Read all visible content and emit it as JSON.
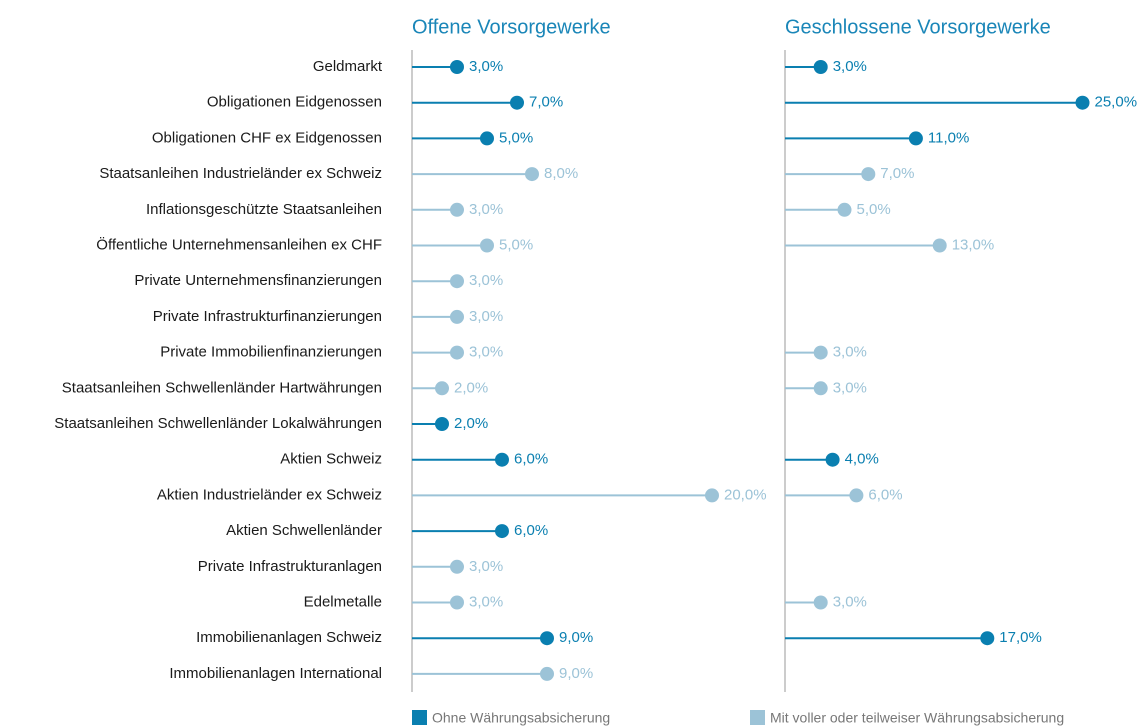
{
  "chart_data": {
    "type": "lollipop",
    "categories": [
      "Geldmarkt",
      "Obligationen Eidgenossen",
      "Obligationen CHF ex Eidgenossen",
      "Staatsanleihen Industrieländer ex Schweiz",
      "Inflationsgeschützte Staatsanleihen",
      "Öffentliche Unternehmensanleihen ex CHF",
      "Private Unternehmensfinanzierungen",
      "Private Infrastrukturfinanzierungen",
      "Private Immobilienfinanzierungen",
      "Staatsanleihen Schwellenländer Hartwährungen",
      "Staatsanleihen Schwellenländer Lokalwährungen",
      "Aktien Schweiz",
      "Aktien Industrieländer ex Schweiz",
      "Aktien Schwellenländer",
      "Private Infrastrukturanlagen",
      "Edelmetalle",
      "Immobilienanlagen Schweiz",
      "Immobilienanlagen International"
    ],
    "legend": [
      {
        "name": "Ohne Währungsabsicherung",
        "color": "#0a7fb0"
      },
      {
        "name": "Mit voller oder teilweiser Währungsabsicherung",
        "color": "#9cc3d7"
      }
    ],
    "panels": [
      {
        "title": "Offene Vorsorgewerke",
        "series": [
          {
            "values": [
              3,
              7,
              5,
              null,
              null,
              null,
              null,
              null,
              null,
              null,
              2,
              6,
              null,
              6,
              null,
              null,
              9,
              null
            ],
            "value_labels": [
              "3,0%",
              "7,0%",
              "5,0%",
              null,
              null,
              null,
              null,
              null,
              null,
              null,
              "2,0%",
              "6,0%",
              null,
              "6,0%",
              null,
              null,
              "9,0%",
              null
            ]
          },
          {
            "values": [
              null,
              null,
              null,
              8,
              3,
              5,
              3,
              3,
              3,
              2,
              null,
              null,
              20,
              null,
              3,
              3,
              null,
              9
            ],
            "value_labels": [
              null,
              null,
              null,
              "8,0%",
              "3,0%",
              "5,0%",
              "3,0%",
              "3,0%",
              "3,0%",
              "2,0%",
              null,
              null,
              "20,0%",
              null,
              "3,0%",
              "3,0%",
              null,
              "9,0%"
            ]
          }
        ]
      },
      {
        "title": "Geschlossene Vorsorgewerke",
        "series": [
          {
            "values": [
              3,
              25,
              11,
              null,
              null,
              null,
              null,
              null,
              null,
              null,
              null,
              4,
              null,
              null,
              null,
              null,
              17,
              null
            ],
            "value_labels": [
              "3,0%",
              "25,0%",
              "11,0%",
              null,
              null,
              null,
              null,
              null,
              null,
              null,
              null,
              "4,0%",
              null,
              null,
              null,
              null,
              "17,0%",
              null
            ]
          },
          {
            "values": [
              null,
              null,
              null,
              7,
              5,
              13,
              null,
              null,
              3,
              3,
              null,
              null,
              6,
              null,
              null,
              3,
              null,
              null
            ],
            "value_labels": [
              null,
              null,
              null,
              "7,0%",
              "5,0%",
              "13,0%",
              null,
              null,
              "3,0%",
              "3,0%",
              null,
              null,
              "6,0%",
              null,
              null,
              "3,0%",
              null,
              null
            ]
          }
        ]
      }
    ]
  }
}
